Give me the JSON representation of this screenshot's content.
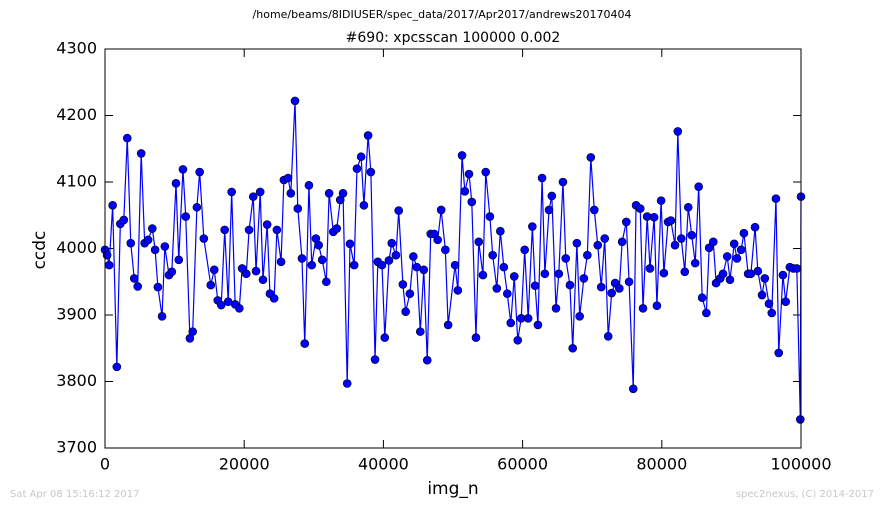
{
  "chart_data": {
    "type": "line",
    "title": "/home/beams/8IDIUSER/spec_data/2017/Apr2017/andrews20170404",
    "subtitle": "#690: xpcsscan 100000 0.002",
    "xlabel": "img_n",
    "ylabel": "ccdc",
    "timestamp": "Sat Apr 08 15:16:12 2017",
    "credit": "spec2nexus, (C) 2014-2017",
    "color": "#0000ff",
    "marker": true,
    "grid": false,
    "xlim": [
      0,
      100000
    ],
    "xticks": [
      0,
      20000,
      40000,
      60000,
      80000,
      100000
    ],
    "ylim": [
      3700,
      4300
    ],
    "yticks": [
      3700,
      3800,
      3900,
      4000,
      4100,
      4200,
      4300
    ],
    "x": [
      0,
      300,
      600,
      1100,
      1700,
      2200,
      2700,
      3200,
      3700,
      4200,
      4700,
      5200,
      5700,
      6200,
      6800,
      7200,
      7600,
      8200,
      8600,
      9200,
      9600,
      10200,
      10600,
      11200,
      11600,
      12200,
      12600,
      13200,
      13600,
      14200,
      15200,
      15700,
      16200,
      16700,
      17200,
      17700,
      18200,
      18700,
      19300,
      19700,
      20300,
      20700,
      21300,
      21700,
      22300,
      22700,
      23300,
      23700,
      24300,
      24700,
      25300,
      25700,
      26300,
      26700,
      27300,
      27700,
      28300,
      28700,
      29300,
      29700,
      30300,
      30700,
      31200,
      31800,
      32200,
      32800,
      33300,
      33800,
      34200,
      34800,
      35200,
      35800,
      36200,
      36800,
      37200,
      37800,
      38200,
      38800,
      39200,
      39800,
      40200,
      40800,
      41200,
      41800,
      42200,
      42800,
      43200,
      43800,
      44300,
      44800,
      45300,
      45800,
      46300,
      46800,
      47300,
      47800,
      48300,
      48900,
      49300,
      50300,
      50700,
      51300,
      51700,
      52300,
      52700,
      53300,
      53700,
      54300,
      54700,
      55300,
      55700,
      56300,
      56800,
      57300,
      57800,
      58300,
      58800,
      59300,
      59800,
      60300,
      60800,
      61400,
      61800,
      62200,
      62800,
      63200,
      63800,
      64200,
      64800,
      65200,
      65800,
      66200,
      66800,
      67200,
      67800,
      68200,
      68800,
      69300,
      69800,
      70300,
      70800,
      71300,
      71800,
      72300,
      72800,
      73300,
      73900,
      74300,
      74900,
      75300,
      75900,
      76300,
      76900,
      77300,
      77900,
      78300,
      78900,
      79300,
      79900,
      80300,
      80900,
      81300,
      81900,
      82300,
      82800,
      83300,
      83800,
      84300,
      84800,
      85300,
      85800,
      86400,
      86800,
      87400,
      87800,
      88400,
      88800,
      89400,
      89800,
      90400,
      90800,
      91400,
      91800,
      92400,
      92800,
      93400,
      93800,
      94400,
      94800,
      95400,
      95800,
      96400,
      96800,
      97400,
      97800,
      98400,
      98900,
      99400,
      99900,
      100000
    ],
    "values": [
      3998,
      3990,
      3975,
      4065,
      3822,
      4037,
      4043,
      4166,
      4008,
      3955,
      3943,
      4143,
      4008,
      4013,
      4030,
      3998,
      3942,
      3898,
      4003,
      3960,
      3965,
      4098,
      3983,
      4119,
      4048,
      3865,
      3875,
      4062,
      4115,
      4015,
      3945,
      3968,
      3922,
      3915,
      4028,
      3920,
      4085,
      3916,
      3910,
      3970,
      3962,
      4028,
      4078,
      3966,
      4085,
      3953,
      4036,
      3932,
      3925,
      4028,
      3980,
      4103,
      4106,
      4083,
      4222,
      4060,
      3985,
      3857,
      4095,
      3975,
      4015,
      4005,
      3983,
      3950,
      4083,
      4025,
      4030,
      4073,
      4083,
      3797,
      4007,
      3975,
      4120,
      4138,
      4065,
      4170,
      4115,
      3833,
      3980,
      3975,
      3866,
      3982,
      4008,
      3990,
      4057,
      3946,
      3905,
      3932,
      3988,
      3972,
      3875,
      3968,
      3832,
      4022,
      4022,
      4013,
      4058,
      3998,
      3885,
      3975,
      3937,
      4140,
      4086,
      4112,
      4070,
      3866,
      4010,
      3960,
      4115,
      4048,
      3990,
      3940,
      4026,
      3972,
      3932,
      3888,
      3958,
      3862,
      3895,
      3998,
      3895,
      4033,
      3944,
      3885,
      4106,
      3962,
      4058,
      4079,
      3910,
      3962,
      4100,
      3985,
      3945,
      3850,
      4008,
      3898,
      3955,
      3990,
      4137,
      4058,
      4005,
      3942,
      4015,
      3868,
      3933,
      3948,
      3940,
      4010,
      4040,
      3950,
      3789,
      4065,
      4060,
      3910,
      4048,
      3970,
      4047,
      3914,
      4072,
      3963,
      4040,
      4042,
      4005,
      4176,
      4015,
      3965,
      4062,
      4020,
      3978,
      4093,
      3926,
      3903,
      4001,
      4010,
      3948,
      3955,
      3962,
      3988,
      3953,
      4007,
      3985,
      3998,
      4023,
      3962,
      3962,
      4032,
      3966,
      3930,
      3955,
      3917,
      3903,
      4075,
      3843,
      3960,
      3920,
      3972,
      3970,
      3970,
      3743,
      4078
    ]
  }
}
